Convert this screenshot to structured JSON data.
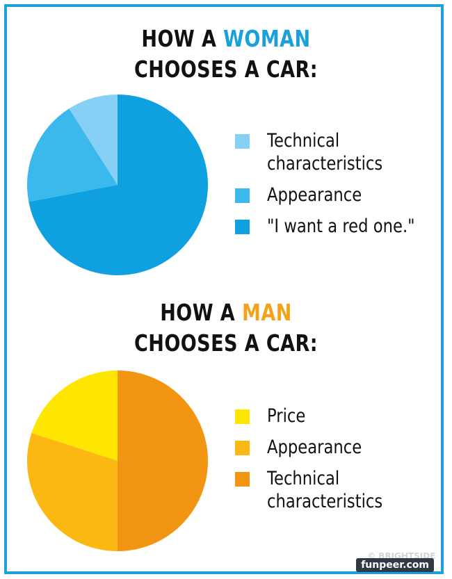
{
  "chart_data": [
    {
      "type": "pie",
      "title_prefix": "HOW A ",
      "title_accent": "WOMAN",
      "title_line2": "CHOOSES A CAR:",
      "categories": [
        "Technical characteristics",
        "Appearance",
        "\"I want a red one.\""
      ],
      "legend_lines": [
        [
          "Technical",
          "characteristics"
        ],
        [
          "Appearance"
        ],
        [
          "\"I want a red one.\""
        ]
      ],
      "values": [
        9,
        19,
        72
      ],
      "colors": [
        "#86d0f5",
        "#3cb9ec",
        "#0fa0e0"
      ],
      "accent_color": "#1aa0da",
      "legend": "right"
    },
    {
      "type": "pie",
      "title_prefix": "HOW A ",
      "title_accent": "MAN",
      "title_line2": "CHOOSES A CAR:",
      "categories": [
        "Price",
        "Appearance",
        "Technical characteristics"
      ],
      "legend_lines": [
        [
          "Price"
        ],
        [
          "Appearance"
        ],
        [
          "Technical",
          "characteristics"
        ]
      ],
      "values": [
        20,
        30,
        50
      ],
      "colors": [
        "#ffe600",
        "#fbb812",
        "#f29513"
      ],
      "accent_color": "#f3a21a",
      "legend": "right"
    }
  ],
  "watermark": "funpeer.com",
  "brand_mark": "© BRIGHTSIDE"
}
